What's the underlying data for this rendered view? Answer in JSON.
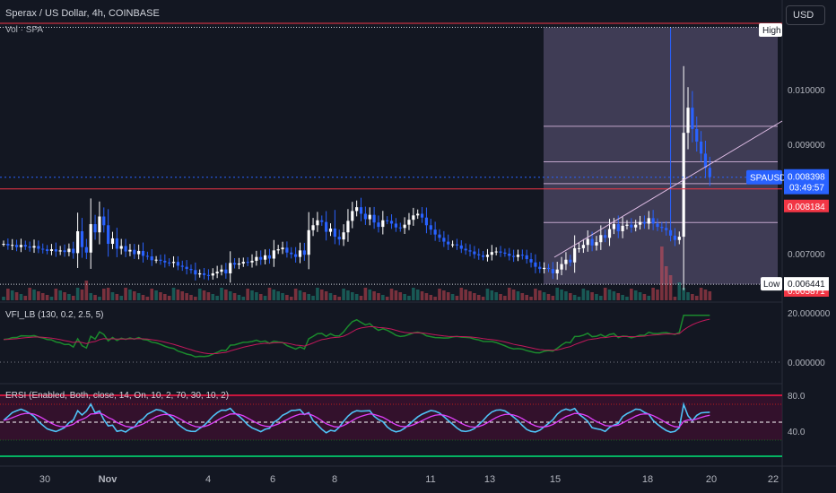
{
  "header": {
    "symbol_title": "Sperax / US Dollar, 4h, COINBASE",
    "volume_label": "Vol · SPA",
    "vfi_label": "VFI_LB (130, 0.2, 2.5, 5)",
    "ersi_label": "ERSI (Enabled, Both, close, 14, On, 10, 2, 70, 30, 10, 2)",
    "currency_button": "USD"
  },
  "chart_data": [
    {
      "type": "candlestick",
      "title": "Sperax / US Dollar, 4h, COINBASE",
      "ylim": [
        0.00585,
        0.01125
      ],
      "y_ticks": [
        "0.007000",
        "0.009000",
        "0.010000"
      ],
      "x_ticks": [
        "30",
        "Nov",
        "4",
        "6",
        "8",
        "11",
        "13",
        "15",
        "18",
        "20",
        "22"
      ],
      "last_price_label": "SPAUSD",
      "last_price": "0.008398",
      "countdown": "03:49:57",
      "red_lines": [
        "0.008184",
        "0.005871"
      ],
      "high_label": "High",
      "low_label": "Low",
      "low_value": "0.006441",
      "range_box": {
        "high": 0.01114,
        "low": 0.00644,
        "levels": [
          0.00933,
          0.00868,
          0.00828,
          0.00757
        ]
      },
      "series_close": [
        0.00718,
        0.00715,
        0.00716,
        0.00712,
        0.00716,
        0.00713,
        0.00711,
        0.00714,
        0.00709,
        0.00708,
        0.00705,
        0.00708,
        0.00704,
        0.00706,
        0.00703,
        0.00709,
        0.00701,
        0.00741,
        0.00712,
        0.00702,
        0.00754,
        0.00739,
        0.00768,
        0.00752,
        0.00718,
        0.00728,
        0.00709,
        0.00714,
        0.00704,
        0.00707,
        0.00699,
        0.00705,
        0.00696,
        0.00695,
        0.00688,
        0.00689,
        0.00687,
        0.00684,
        0.00683,
        0.00685,
        0.00678,
        0.00676,
        0.00672,
        0.0067,
        0.00662,
        0.00664,
        0.00661,
        0.0066,
        0.00664,
        0.00667,
        0.00671,
        0.00664,
        0.00683,
        0.0068,
        0.00682,
        0.00685,
        0.00684,
        0.00687,
        0.00694,
        0.00689,
        0.00697,
        0.00691,
        0.00706,
        0.00708,
        0.00711,
        0.00702,
        0.00699,
        0.00694,
        0.00706,
        0.00698,
        0.00743,
        0.00752,
        0.00761,
        0.00758,
        0.0074,
        0.00746,
        0.00731,
        0.00726,
        0.00739,
        0.0076,
        0.00778,
        0.00785,
        0.00773,
        0.00763,
        0.00771,
        0.00757,
        0.00749,
        0.00761,
        0.0076,
        0.00755,
        0.00748,
        0.00747,
        0.00753,
        0.00762,
        0.0077,
        0.00773,
        0.00766,
        0.00752,
        0.00744,
        0.00735,
        0.00729,
        0.00722,
        0.00717,
        0.00717,
        0.00715,
        0.00709,
        0.00706,
        0.00704,
        0.00699,
        0.00697,
        0.00694,
        0.00698,
        0.00703,
        0.00704,
        0.00702,
        0.007,
        0.00696,
        0.00694,
        0.00698,
        0.00697,
        0.0069,
        0.00684,
        0.00676,
        0.00672,
        0.00674,
        0.00672,
        0.00664,
        0.00671,
        0.00681,
        0.00689,
        0.00684,
        0.0071,
        0.0071,
        0.00716,
        0.00727,
        0.00715,
        0.00721,
        0.00734,
        0.00729,
        0.00745,
        0.00754,
        0.00741,
        0.00751,
        0.00753,
        0.00748,
        0.00753,
        0.00758,
        0.00755,
        0.00765,
        0.00755,
        0.00749,
        0.00747,
        0.00743,
        0.00733,
        0.00725,
        0.00731,
        0.00921,
        0.00967,
        0.00928,
        0.00905,
        0.00883,
        0.00857,
        0.0084
      ],
      "volume_ylim": [
        0,
        0.0004
      ]
    },
    {
      "type": "line",
      "title": "VFI_LB (130, 0.2, 2.5, 5)",
      "y_ticks": [
        "20.000000",
        "0.000000"
      ],
      "ylim": [
        -7,
        21
      ]
    },
    {
      "type": "line",
      "title": "ERSI (Enabled, Both, close, 14, On, 10, 2, 70, 30, 10, 2)",
      "y_ticks": [
        "80.0",
        "40.0"
      ],
      "ylim": [
        5,
        100
      ],
      "bands": [
        80,
        30
      ]
    }
  ],
  "colors": {
    "bg": "#131722",
    "up": "#ffffff",
    "down": "#2962ff",
    "red_line": "#f23645",
    "range_fill": "#b39ddb",
    "vfi_green": "#1b8a2d",
    "vfi_red": "#c2185b",
    "ersi_blue": "#4fc3f7",
    "ersi_pink": "#e040fb",
    "ersi_green": "#00e676",
    "ersi_red": "#ff1744"
  }
}
